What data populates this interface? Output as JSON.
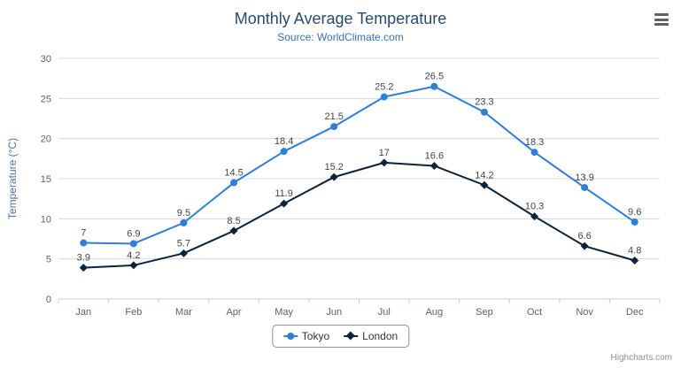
{
  "chart_data": {
    "type": "line",
    "title": "Monthly Average Temperature",
    "subtitle": "Source: WorldClimate.com",
    "categories": [
      "Jan",
      "Feb",
      "Mar",
      "Apr",
      "May",
      "Jun",
      "Jul",
      "Aug",
      "Sep",
      "Oct",
      "Nov",
      "Dec"
    ],
    "series": [
      {
        "name": "Tokyo",
        "color": "#2f7ed8",
        "marker": "circle",
        "values": [
          7,
          6.9,
          9.5,
          14.5,
          18.4,
          21.5,
          25.2,
          26.5,
          23.3,
          18.3,
          13.9,
          9.6
        ]
      },
      {
        "name": "London",
        "color": "#0d233a",
        "marker": "diamond",
        "values": [
          3.9,
          4.2,
          5.7,
          8.5,
          11.9,
          15.2,
          17,
          16.6,
          14.2,
          10.3,
          6.6,
          4.8
        ]
      }
    ],
    "xlabel": "",
    "ylabel": "Temperature (°C)",
    "ylim": [
      0,
      30
    ],
    "ytick_interval": 5,
    "grid": true,
    "legend_position": "bottom"
  },
  "credits": "Highcharts.com",
  "icons": {
    "menu": "hamburger-menu"
  }
}
